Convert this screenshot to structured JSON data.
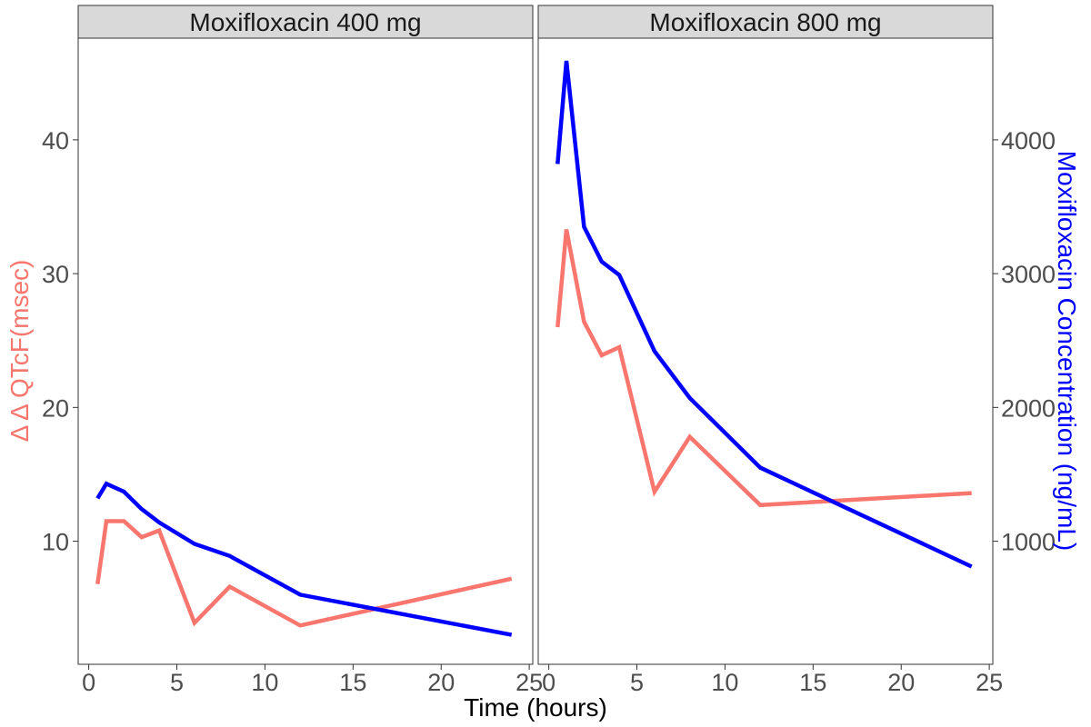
{
  "chart_data": {
    "type": "line",
    "xlabel": "Time (hours)",
    "ylabel_left": "Δ Δ QTcF(msec)",
    "ylabel_right": "Moxifloxacin Concentration (ng/mL)",
    "xlim": [
      -0.6,
      25.2
    ],
    "ylim_left": [
      0.8,
      47.6
    ],
    "ylim_right": [
      80,
      4760
    ],
    "x_ticks": [
      "0",
      "5",
      "10",
      "15",
      "20",
      "25"
    ],
    "y_ticks_left": [
      "10",
      "20",
      "30",
      "40"
    ],
    "y_ticks_right": [
      "1000",
      "2000",
      "3000",
      "4000"
    ],
    "grid": true,
    "colors": {
      "qtcf": "#F8766D",
      "concentration": "#0000FF"
    },
    "panels": [
      {
        "title": "Moxifloxacin 400 mg",
        "series": [
          {
            "key": "qtcf",
            "axis": "left",
            "x": [
              0.5,
              1,
              2,
              3,
              4,
              6,
              8,
              12,
              24
            ],
            "values": [
              6.8,
              11.5,
              11.5,
              10.3,
              10.8,
              3.9,
              6.6,
              3.7,
              7.2
            ]
          },
          {
            "key": "concentration",
            "axis": "right",
            "x": [
              0.5,
              1,
              2,
              3,
              4,
              6,
              8,
              12,
              24
            ],
            "values": [
              1320,
              1430,
              1370,
              1240,
              1140,
              980,
              890,
              600,
              300
            ]
          }
        ]
      },
      {
        "title": "Moxifloxacin 800 mg",
        "series": [
          {
            "key": "qtcf",
            "axis": "left",
            "x": [
              0.5,
              1,
              2,
              3,
              4,
              6,
              8,
              12,
              24
            ],
            "values": [
              26.0,
              33.3,
              26.4,
              23.9,
              24.5,
              13.7,
              17.8,
              12.7,
              13.6
            ]
          },
          {
            "key": "concentration",
            "axis": "right",
            "x": [
              0.5,
              1,
              2,
              3,
              4,
              6,
              8,
              12,
              24
            ],
            "values": [
              3820,
              4590,
              3350,
              3090,
              2990,
              2420,
              2070,
              1550,
              810
            ]
          }
        ]
      }
    ]
  }
}
